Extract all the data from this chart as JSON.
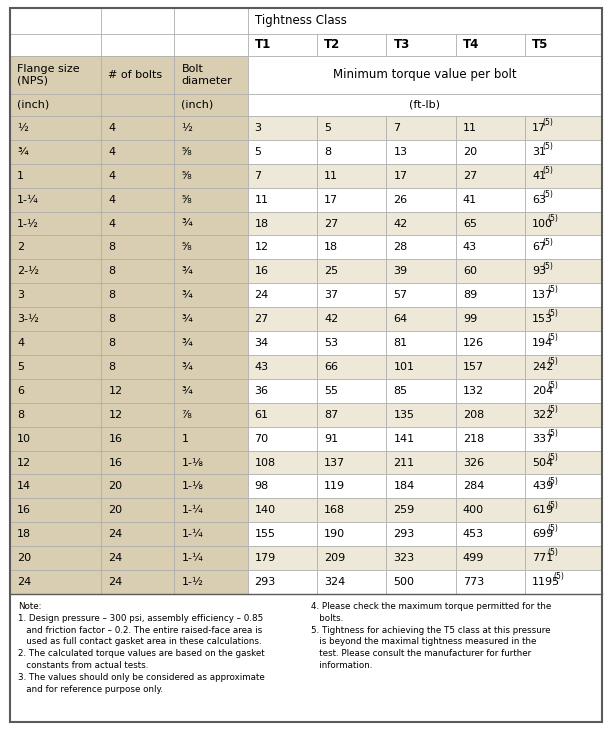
{
  "rows": [
    [
      "½",
      "4",
      "½",
      "3",
      "5",
      "7",
      "11",
      "17"
    ],
    [
      "¾",
      "4",
      "⁵⁄₈",
      "5",
      "8",
      "13",
      "20",
      "31"
    ],
    [
      "1",
      "4",
      "⁵⁄₈",
      "7",
      "11",
      "17",
      "27",
      "41"
    ],
    [
      "1-¼",
      "4",
      "⁵⁄₈",
      "11",
      "17",
      "26",
      "41",
      "63"
    ],
    [
      "1-½",
      "4",
      "¾",
      "18",
      "27",
      "42",
      "65",
      "100"
    ],
    [
      "2",
      "8",
      "⁵⁄₈",
      "12",
      "18",
      "28",
      "43",
      "67"
    ],
    [
      "2-½",
      "8",
      "¾",
      "16",
      "25",
      "39",
      "60",
      "93"
    ],
    [
      "3",
      "8",
      "¾",
      "24",
      "37",
      "57",
      "89",
      "137"
    ],
    [
      "3-½",
      "8",
      "¾",
      "27",
      "42",
      "64",
      "99",
      "153"
    ],
    [
      "4",
      "8",
      "¾",
      "34",
      "53",
      "81",
      "126",
      "194"
    ],
    [
      "5",
      "8",
      "¾",
      "43",
      "66",
      "101",
      "157",
      "242"
    ],
    [
      "6",
      "12",
      "¾",
      "36",
      "55",
      "85",
      "132",
      "204"
    ],
    [
      "8",
      "12",
      "⁷⁄₈",
      "61",
      "87",
      "135",
      "208",
      "322"
    ],
    [
      "10",
      "16",
      "1",
      "70",
      "91",
      "141",
      "218",
      "337"
    ],
    [
      "12",
      "16",
      "1-⅛",
      "108",
      "137",
      "211",
      "326",
      "504"
    ],
    [
      "14",
      "20",
      "1-⅛",
      "98",
      "119",
      "184",
      "284",
      "439"
    ],
    [
      "16",
      "20",
      "1-¼",
      "140",
      "168",
      "259",
      "400",
      "619"
    ],
    [
      "18",
      "24",
      "1-¼",
      "155",
      "190",
      "293",
      "453",
      "699"
    ],
    [
      "20",
      "24",
      "1-¼",
      "179",
      "209",
      "323",
      "499",
      "771"
    ],
    [
      "24",
      "24",
      "1-½",
      "293",
      "324",
      "500",
      "773",
      "1195"
    ]
  ],
  "note_text_left": "Note:\n1. Design pressure – 300 psi, assembly efficiency – 0.85\n   and friction factor – 0.2. The entire raised-face area is\n   used as full contact gasket area in these calculations.\n2. The calculated torque values are based on the gasket\n   constants from actual tests.\n3. The values should only be considered as approximate\n   and for reference purpose only.",
  "note_text_right": "4. Please check the maximum torque permitted for the\n   bolts.\n5. Tightness for achieving the T5 class at this pressure\n   is beyond the maximal tightness measured in the\n   test. Please consult the manufacturer for further\n   information.",
  "bg_tan": "#d9ceb2",
  "bg_light": "#ede8d8",
  "bg_white": "#ffffff",
  "border_dark": "#5a5a5a",
  "border_light": "#aaaaaa",
  "col_widths_rel": [
    1.25,
    1.0,
    1.0,
    0.95,
    0.95,
    0.95,
    0.95,
    1.05
  ],
  "t_labels": [
    "T1",
    "T2",
    "T3",
    "T4",
    "T5"
  ],
  "tightness_class": "Tightness Class",
  "min_torque": "Minimum torque value per bolt",
  "ft_lb": "(ft-lb)",
  "col0_hdr": "Flange size\n(NPS)",
  "col1_hdr": "# of bolts",
  "col2_hdr": "Bolt\ndiameter",
  "col0_unit": "(inch)",
  "col2_unit": "(inch)"
}
